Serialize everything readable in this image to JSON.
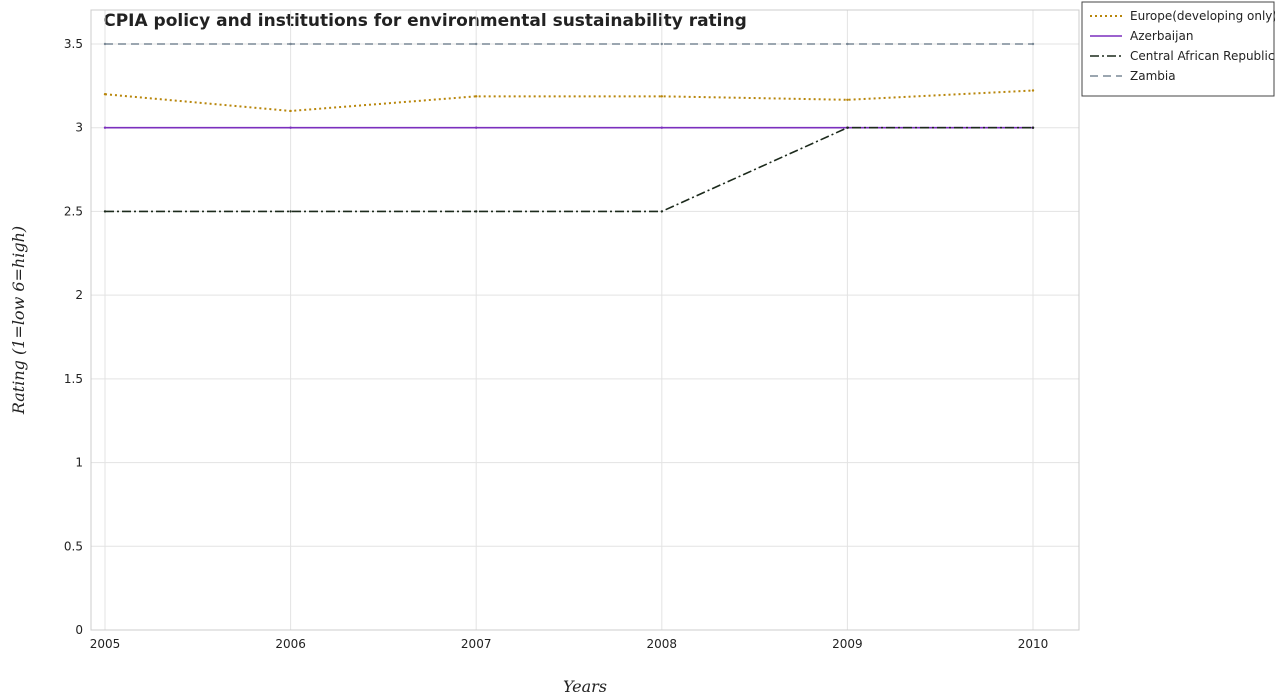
{
  "chart_data": {
    "type": "line",
    "title": "CPIA policy and institutions for environmental sustainability rating",
    "xlabel": "Years",
    "ylabel": "Rating (1=low 6=high)",
    "x": [
      "2005",
      "2006",
      "2007",
      "2008",
      "2009",
      "2010"
    ],
    "yticks": [
      "0",
      "0.5",
      "1",
      "1.5",
      "2",
      "2.5",
      "3",
      "3.5"
    ],
    "ylim": [
      0,
      3.5
    ],
    "grid": true,
    "legend_position": "top-right",
    "series": [
      {
        "name": "Europe(developing only)",
        "values": [
          3.2,
          3.1,
          3.1875,
          3.1875,
          3.1667,
          3.2222
        ],
        "color": "#b8860b",
        "style": "dotted"
      },
      {
        "name": "Azerbaijan",
        "values": [
          3.0,
          3.0,
          3.0,
          3.0,
          3.0,
          3.0
        ],
        "color": "#7b2fbe",
        "style": "solid"
      },
      {
        "name": "Central African Republic",
        "values": [
          2.5,
          2.5,
          2.5,
          2.5,
          3.0,
          3.0
        ],
        "color": "#1c2a1c",
        "style": "dashdot"
      },
      {
        "name": "Zambia",
        "values": [
          3.5,
          3.5,
          3.5,
          3.5,
          3.5,
          3.5
        ],
        "color": "#7a8895",
        "style": "dashed"
      }
    ]
  }
}
